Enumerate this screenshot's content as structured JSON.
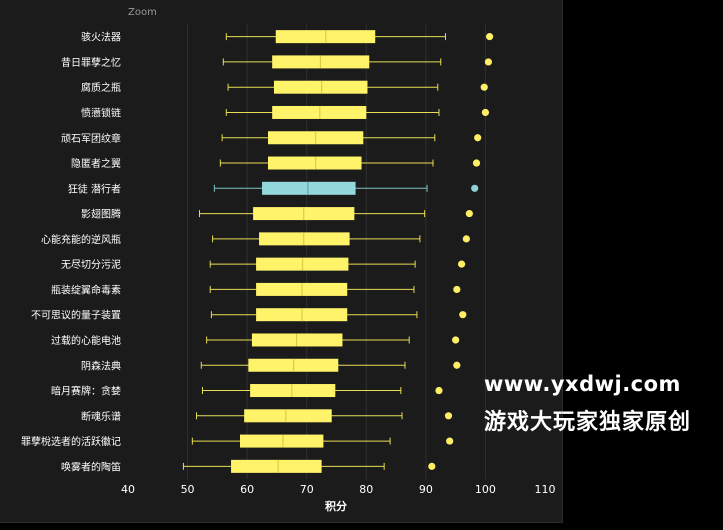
{
  "toolbar": {
    "zoom_label": "Zoom"
  },
  "watermark": {
    "url": "www.yxdwj.com",
    "caption": "游戏大玩家独家原创"
  },
  "colors": {
    "box": "#fff36a",
    "box_highlight": "#93d8dc",
    "median": "#d9ce40",
    "median_highlight": "#5aa9ae",
    "whisker": "#e8dd55",
    "whisker_highlight": "#7cc3c7",
    "point": "#ffee66",
    "point_highlight": "#8fd2d6",
    "grid": "#2f2f2f",
    "text": "#ffffff"
  },
  "chart_data": {
    "type": "boxplot",
    "title": "",
    "xlabel": "积分",
    "ylabel": "",
    "xlim": [
      40,
      110
    ],
    "xticks": [
      40,
      50,
      60,
      70,
      80,
      90,
      100,
      110
    ],
    "grid": true,
    "highlight_index": 6,
    "series": [
      {
        "name": "骇火法器",
        "min": 56.5,
        "q1": 64.8,
        "median": 73.2,
        "q3": 81.5,
        "max": 93.3,
        "point": 100.7
      },
      {
        "name": "昔日罪孽之忆",
        "min": 56.0,
        "q1": 64.2,
        "median": 72.3,
        "q3": 80.5,
        "max": 92.5,
        "point": 100.5
      },
      {
        "name": "腐质之瓶",
        "min": 56.8,
        "q1": 64.5,
        "median": 72.5,
        "q3": 80.2,
        "max": 92.0,
        "point": 99.8
      },
      {
        "name": "愤懑锁链",
        "min": 56.5,
        "q1": 64.2,
        "median": 72.2,
        "q3": 80.0,
        "max": 92.2,
        "point": 100.0
      },
      {
        "name": "顽石军团纹章",
        "min": 55.8,
        "q1": 63.5,
        "median": 71.5,
        "q3": 79.5,
        "max": 91.5,
        "point": 98.7
      },
      {
        "name": "隐匿者之翼",
        "min": 55.5,
        "q1": 63.5,
        "median": 71.5,
        "q3": 79.2,
        "max": 91.2,
        "point": 98.5
      },
      {
        "name": "狂徒 潜行者",
        "min": 54.5,
        "q1": 62.5,
        "median": 70.2,
        "q3": 78.2,
        "max": 90.2,
        "point": 98.2
      },
      {
        "name": "影翅图腾",
        "min": 52.0,
        "q1": 61.0,
        "median": 69.5,
        "q3": 78.0,
        "max": 89.8,
        "point": 97.3
      },
      {
        "name": "心能充能的逆风瓶",
        "min": 54.2,
        "q1": 62.0,
        "median": 69.5,
        "q3": 77.2,
        "max": 89.0,
        "point": 96.8
      },
      {
        "name": "无尽切分污泥",
        "min": 53.8,
        "q1": 61.5,
        "median": 69.3,
        "q3": 77.0,
        "max": 88.2,
        "point": 96.0
      },
      {
        "name": "瓶装绽翼命毒素",
        "min": 53.8,
        "q1": 61.5,
        "median": 69.2,
        "q3": 76.8,
        "max": 88.0,
        "point": 95.2
      },
      {
        "name": "不可思议的量子装置",
        "min": 54.0,
        "q1": 61.5,
        "median": 69.2,
        "q3": 76.8,
        "max": 88.5,
        "point": 96.2
      },
      {
        "name": "过载的心能电池",
        "min": 53.2,
        "q1": 60.8,
        "median": 68.3,
        "q3": 76.0,
        "max": 87.2,
        "point": 95.0
      },
      {
        "name": "阴森法典",
        "min": 52.3,
        "q1": 60.2,
        "median": 67.8,
        "q3": 75.3,
        "max": 86.5,
        "point": 95.2
      },
      {
        "name": "暗月赛牌：贪婪",
        "min": 52.5,
        "q1": 60.5,
        "median": 67.5,
        "q3": 74.8,
        "max": 85.8,
        "point": 92.2
      },
      {
        "name": "断魂乐谱",
        "min": 51.5,
        "q1": 59.5,
        "median": 66.5,
        "q3": 74.2,
        "max": 86.0,
        "point": 93.8
      },
      {
        "name": "罪孽梲选者的活跃徽记",
        "min": 50.8,
        "q1": 58.8,
        "median": 66.0,
        "q3": 72.8,
        "max": 84.0,
        "point": 94.0
      },
      {
        "name": "唤雾者的陶笛",
        "min": 49.3,
        "q1": 57.3,
        "median": 65.2,
        "q3": 72.5,
        "max": 83.0,
        "point": 91.0
      }
    ]
  }
}
